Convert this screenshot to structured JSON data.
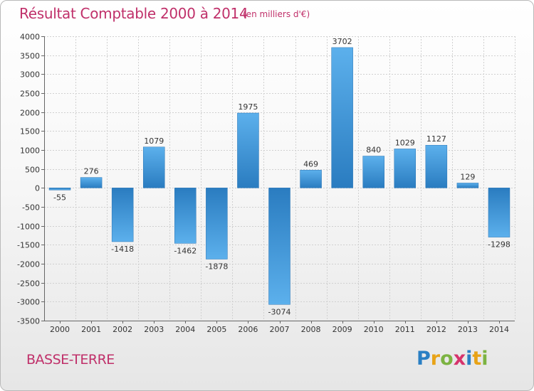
{
  "header": {
    "title": "Résultat Comptable 2000 à 2014",
    "subtitle": "(en milliers d'€)"
  },
  "footer": {
    "city": "BASSE-TERRE",
    "logo_text": "Proxiti",
    "logo_colors": [
      "#2a7fc4",
      "#e8a317",
      "#7cb342",
      "#d6336c",
      "#2a7fc4",
      "#e8a317",
      "#7cb342"
    ]
  },
  "chart_data": {
    "type": "bar",
    "title": "Résultat Comptable 2000 à 2014",
    "xlabel": "",
    "ylabel": "",
    "categories": [
      "2000",
      "2001",
      "2002",
      "2003",
      "2004",
      "2005",
      "2006",
      "2007",
      "2008",
      "2009",
      "2010",
      "2011",
      "2012",
      "2013",
      "2014"
    ],
    "values": [
      -55,
      276,
      -1418,
      1079,
      -1462,
      -1878,
      1975,
      -3074,
      469,
      3702,
      840,
      1029,
      1127,
      129,
      -1298
    ],
    "data_labels": [
      "-55",
      "276",
      "-1418",
      "1079",
      "-1462",
      "-1878",
      "1975",
      "-3074",
      "469",
      "3702",
      "840",
      "1029",
      "1127",
      "129",
      "-1298"
    ],
    "ylim": [
      -3500,
      4000
    ],
    "yticks": [
      -3500,
      -3000,
      -2500,
      -2000,
      -1500,
      -1000,
      -500,
      0,
      500,
      1000,
      1500,
      2000,
      2500,
      3000,
      3500,
      4000
    ],
    "grid": true,
    "bar_color": "#3a8fd6"
  }
}
